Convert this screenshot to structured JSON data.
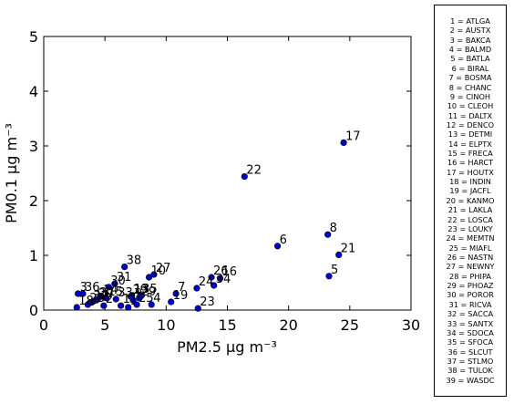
{
  "chart_data": {
    "type": "scatter",
    "title": "",
    "xlabel": "PM2.5 μg m⁻³",
    "ylabel": "PM0.1 μg m⁻³",
    "xlim": [
      0,
      30
    ],
    "ylim": [
      0,
      5
    ],
    "xticks": [
      "0",
      "5",
      "10",
      "15",
      "20",
      "25",
      "30"
    ],
    "yticks": [
      "0",
      "1",
      "2",
      "3",
      "4",
      "5"
    ],
    "grid": false,
    "legend_position": "right",
    "marker_color": "#0000cc",
    "points": [
      {
        "label": "1",
        "x": 6.9,
        "y": 0.05
      },
      {
        "label": "2",
        "x": 4.9,
        "y": 0.08
      },
      {
        "label": "3",
        "x": 2.8,
        "y": 0.3
      },
      {
        "label": "4",
        "x": 8.8,
        "y": 0.1
      },
      {
        "label": "5",
        "x": 23.3,
        "y": 0.62
      },
      {
        "label": "6",
        "x": 19.1,
        "y": 1.17
      },
      {
        "label": "7",
        "x": 10.8,
        "y": 0.3
      },
      {
        "label": "8",
        "x": 23.2,
        "y": 1.38
      },
      {
        "label": "9",
        "x": 7.3,
        "y": 0.18
      },
      {
        "label": "10",
        "x": 8.6,
        "y": 0.6
      },
      {
        "label": "11",
        "x": 6.3,
        "y": 0.08
      },
      {
        "label": "12",
        "x": 4.0,
        "y": 0.15
      },
      {
        "label": "13",
        "x": 7.2,
        "y": 0.27
      },
      {
        "label": "14",
        "x": 4.7,
        "y": 0.25
      },
      {
        "label": "15",
        "x": 5.1,
        "y": 0.22
      },
      {
        "label": "16",
        "x": 14.4,
        "y": 0.58
      },
      {
        "label": "17",
        "x": 24.5,
        "y": 3.06
      },
      {
        "label": "18",
        "x": 2.7,
        "y": 0.05
      },
      {
        "label": "19",
        "x": 10.4,
        "y": 0.15
      },
      {
        "label": "20",
        "x": 4.3,
        "y": 0.18
      },
      {
        "label": "21",
        "x": 24.1,
        "y": 1.01
      },
      {
        "label": "22",
        "x": 16.4,
        "y": 2.44
      },
      {
        "label": "23",
        "x": 12.6,
        "y": 0.03
      },
      {
        "label": "24",
        "x": 12.5,
        "y": 0.4
      },
      {
        "label": "25",
        "x": 7.6,
        "y": 0.1
      },
      {
        "label": "26",
        "x": 13.7,
        "y": 0.6
      },
      {
        "label": "27",
        "x": 9.0,
        "y": 0.65
      },
      {
        "label": "28",
        "x": 3.6,
        "y": 0.1
      },
      {
        "label": "29",
        "x": 7.8,
        "y": 0.22
      },
      {
        "label": "30",
        "x": 5.3,
        "y": 0.42
      },
      {
        "label": "31",
        "x": 5.8,
        "y": 0.48
      },
      {
        "label": "32",
        "x": 3.9,
        "y": 0.14
      },
      {
        "label": "33",
        "x": 5.9,
        "y": 0.2
      },
      {
        "label": "34",
        "x": 13.9,
        "y": 0.45
      },
      {
        "label": "35",
        "x": 7.9,
        "y": 0.27
      },
      {
        "label": "36",
        "x": 3.2,
        "y": 0.3
      },
      {
        "label": "37",
        "x": 4.4,
        "y": 0.2
      },
      {
        "label": "38",
        "x": 6.6,
        "y": 0.79
      },
      {
        "label": "39",
        "x": 7.1,
        "y": 0.25
      }
    ],
    "legend": [
      "1 = ATLGA",
      "2 = AUSTX",
      "3 = BAKCA",
      "4 = BALMD",
      "5 = BATLA",
      "6 = BIRAL",
      "7 = BOSMA",
      "8 = CHANC",
      "9 = CINOH",
      "10 = CLEOH",
      "11 = DALTX",
      "12 = DENCO",
      "13 = DETMI",
      "14 = ELPTX",
      "15 = FRECA",
      "16 = HARCT",
      "17 = HOUTX",
      "18 = INDIN",
      "19 = JACFL",
      "20 = KANMO",
      "21 = LAKLA",
      "22 = LOSCA",
      "23 = LOUKY",
      "24 = MEMTN",
      "25 = MIAFL",
      "26 = NASTN",
      "27 = NEWNY",
      "28 = PHIPA",
      "29 = PHOAZ",
      "30 = POROR",
      "31 = RICVA",
      "32 = SACCA",
      "33 = SANTX",
      "34 = SDOCA",
      "35 = SFOCA",
      "36 = SLCUT",
      "37 = STLMO",
      "38 = TULOK",
      "39 = WASDC"
    ]
  }
}
